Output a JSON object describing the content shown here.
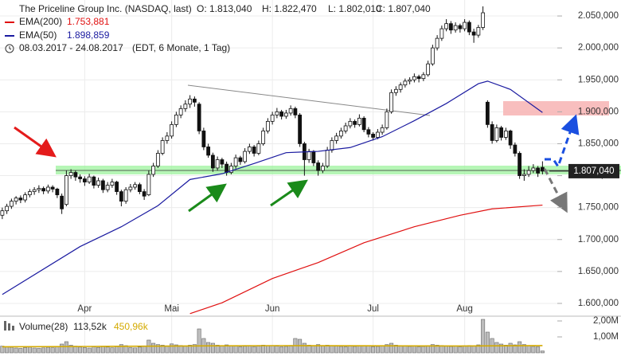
{
  "chart_data": {
    "type": "candlestick",
    "title": "The Priceline Group Inc. (NASDAQ, last)",
    "ohlc_labels": [
      "O: 1.813,040",
      "H: 1.822,470",
      "L: 1.802,010",
      "C: 1.807,040"
    ],
    "date_range": "08.03.2017 - 24.08.2017",
    "period_note": "(EDT, 6 Monate, 1 Tag)",
    "last_price_label": "1.807,040",
    "xlim": [
      -0.5,
      119.5
    ],
    "xticks": [
      {
        "value": 18,
        "label": "Apr"
      },
      {
        "value": 37,
        "label": "Mai"
      },
      {
        "value": 59,
        "label": "Jun"
      },
      {
        "value": 81,
        "label": "Jul"
      },
      {
        "value": 101,
        "label": "Aug"
      }
    ],
    "ylim": [
      1582.5,
      2075
    ],
    "yticks": [
      {
        "value": 1600,
        "label": "1.600,000"
      },
      {
        "value": 1650,
        "label": "1.650,000"
      },
      {
        "value": 1700,
        "label": "1.700,000"
      },
      {
        "value": 1750,
        "label": "1.750,000"
      },
      {
        "value": 1800,
        "label": "1.800,000"
      },
      {
        "value": 1850,
        "label": "1.850,000"
      },
      {
        "value": 1900,
        "label": "1.900,000"
      },
      {
        "value": 1950,
        "label": "1.950,000"
      },
      {
        "value": 2000,
        "label": "2.000,000"
      },
      {
        "value": 2050,
        "label": "2.050,000"
      }
    ],
    "grid": true,
    "candles": [
      [
        1738,
        1750,
        1732,
        1745
      ],
      [
        1745,
        1756,
        1740,
        1752
      ],
      [
        1752,
        1764,
        1748,
        1760
      ],
      [
        1760,
        1768,
        1755,
        1765
      ],
      [
        1765,
        1769,
        1757,
        1762
      ],
      [
        1762,
        1774,
        1758,
        1770
      ],
      [
        1770,
        1779,
        1766,
        1775
      ],
      [
        1775,
        1782,
        1770,
        1778
      ],
      [
        1778,
        1785,
        1773,
        1780
      ],
      [
        1780,
        1783,
        1771,
        1776
      ],
      [
        1776,
        1786,
        1772,
        1782
      ],
      [
        1782,
        1785,
        1774,
        1779
      ],
      [
        1779,
        1781,
        1765,
        1770
      ],
      [
        1768,
        1772,
        1740,
        1748
      ],
      [
        1755,
        1808,
        1752,
        1800
      ],
      [
        1800,
        1810,
        1795,
        1805
      ],
      [
        1805,
        1808,
        1792,
        1798
      ],
      [
        1798,
        1802,
        1789,
        1795
      ],
      [
        1795,
        1799,
        1784,
        1790
      ],
      [
        1790,
        1803,
        1787,
        1798
      ],
      [
        1798,
        1800,
        1780,
        1785
      ],
      [
        1785,
        1797,
        1781,
        1792
      ],
      [
        1792,
        1795,
        1773,
        1778
      ],
      [
        1778,
        1790,
        1774,
        1785
      ],
      [
        1785,
        1795,
        1781,
        1790
      ],
      [
        1790,
        1792,
        1770,
        1775
      ],
      [
        1775,
        1778,
        1752,
        1760
      ],
      [
        1760,
        1782,
        1756,
        1778
      ],
      [
        1778,
        1787,
        1774,
        1782
      ],
      [
        1782,
        1790,
        1778,
        1786
      ],
      [
        1786,
        1789,
        1771,
        1775
      ],
      [
        1775,
        1779,
        1762,
        1768
      ],
      [
        1770,
        1808,
        1768,
        1802
      ],
      [
        1802,
        1820,
        1798,
        1815
      ],
      [
        1815,
        1840,
        1812,
        1835
      ],
      [
        1835,
        1860,
        1832,
        1855
      ],
      [
        1855,
        1868,
        1850,
        1862
      ],
      [
        1862,
        1885,
        1858,
        1880
      ],
      [
        1880,
        1900,
        1876,
        1895
      ],
      [
        1895,
        1910,
        1890,
        1905
      ],
      [
        1905,
        1918,
        1900,
        1912
      ],
      [
        1912,
        1926,
        1906,
        1920
      ],
      [
        1920,
        1924,
        1908,
        1915
      ],
      [
        1912,
        1915,
        1865,
        1870
      ],
      [
        1870,
        1875,
        1840,
        1845
      ],
      [
        1845,
        1850,
        1828,
        1832
      ],
      [
        1832,
        1836,
        1806,
        1812
      ],
      [
        1812,
        1830,
        1808,
        1825
      ],
      [
        1825,
        1828,
        1812,
        1818
      ],
      [
        1818,
        1822,
        1800,
        1805
      ],
      [
        1805,
        1820,
        1802,
        1815
      ],
      [
        1815,
        1833,
        1811,
        1828
      ],
      [
        1828,
        1831,
        1817,
        1822
      ],
      [
        1822,
        1843,
        1819,
        1838
      ],
      [
        1838,
        1850,
        1834,
        1845
      ],
      [
        1845,
        1848,
        1830,
        1835
      ],
      [
        1835,
        1855,
        1832,
        1850
      ],
      [
        1850,
        1875,
        1847,
        1870
      ],
      [
        1870,
        1890,
        1866,
        1885
      ],
      [
        1885,
        1900,
        1880,
        1895
      ],
      [
        1895,
        1906,
        1890,
        1900
      ],
      [
        1900,
        1903,
        1888,
        1893
      ],
      [
        1893,
        1903,
        1889,
        1898
      ],
      [
        1898,
        1910,
        1894,
        1905
      ],
      [
        1905,
        1908,
        1890,
        1895
      ],
      [
        1895,
        1898,
        1845,
        1850
      ],
      [
        1850,
        1853,
        1800,
        1825
      ],
      [
        1825,
        1842,
        1820,
        1838
      ],
      [
        1838,
        1840,
        1815,
        1820
      ],
      [
        1820,
        1824,
        1800,
        1808
      ],
      [
        1808,
        1820,
        1804,
        1815
      ],
      [
        1815,
        1845,
        1812,
        1840
      ],
      [
        1840,
        1860,
        1836,
        1855
      ],
      [
        1855,
        1867,
        1850,
        1862
      ],
      [
        1862,
        1875,
        1858,
        1870
      ],
      [
        1870,
        1883,
        1866,
        1878
      ],
      [
        1878,
        1890,
        1874,
        1885
      ],
      [
        1885,
        1888,
        1875,
        1880
      ],
      [
        1880,
        1896,
        1877,
        1890
      ],
      [
        1890,
        1893,
        1868,
        1872
      ],
      [
        1872,
        1876,
        1860,
        1865
      ],
      [
        1865,
        1868,
        1855,
        1860
      ],
      [
        1860,
        1873,
        1857,
        1868
      ],
      [
        1868,
        1880,
        1864,
        1875
      ],
      [
        1875,
        1905,
        1872,
        1900
      ],
      [
        1900,
        1935,
        1897,
        1930
      ],
      [
        1930,
        1940,
        1925,
        1935
      ],
      [
        1935,
        1946,
        1930,
        1942
      ],
      [
        1942,
        1952,
        1938,
        1948
      ],
      [
        1948,
        1954,
        1943,
        1950
      ],
      [
        1950,
        1960,
        1946,
        1955
      ],
      [
        1955,
        1958,
        1946,
        1952
      ],
      [
        1952,
        1962,
        1948,
        1958
      ],
      [
        1958,
        1980,
        1955,
        1975
      ],
      [
        1975,
        2005,
        1972,
        2000
      ],
      [
        2000,
        2020,
        1996,
        2015
      ],
      [
        2015,
        2035,
        2011,
        2030
      ],
      [
        2030,
        2045,
        2026,
        2038
      ],
      [
        2038,
        2042,
        2022,
        2028
      ],
      [
        2028,
        2040,
        2024,
        2035
      ],
      [
        2035,
        2038,
        2024,
        2030
      ],
      [
        2030,
        2045,
        2026,
        2040
      ],
      [
        2040,
        2043,
        2020,
        2025
      ],
      [
        2025,
        2030,
        2008,
        2020
      ],
      [
        2020,
        2036,
        2016,
        2032
      ],
      [
        2032,
        2065,
        2028,
        2055
      ],
      [
        1915,
        1918,
        1875,
        1880
      ],
      [
        1880,
        1885,
        1850,
        1855
      ],
      [
        1855,
        1880,
        1852,
        1875
      ],
      [
        1875,
        1878,
        1855,
        1860
      ],
      [
        1860,
        1875,
        1856,
        1870
      ],
      [
        1870,
        1872,
        1842,
        1848
      ],
      [
        1848,
        1852,
        1830,
        1835
      ],
      [
        1835,
        1838,
        1795,
        1800
      ],
      [
        1800,
        1810,
        1792,
        1802
      ],
      [
        1802,
        1815,
        1798,
        1808
      ],
      [
        1808,
        1818,
        1804,
        1812
      ],
      [
        1812,
        1815,
        1798,
        1804
      ],
      [
        1813.04,
        1822.47,
        1802.01,
        1807.04
      ]
    ],
    "series": [
      {
        "name": "EMA(200)",
        "color": "#e01010",
        "value_label": "1.753,881",
        "x": [
          41,
          48,
          59,
          69,
          79,
          90,
          100,
          107,
          118
        ],
        "values": [
          1584,
          1601,
          1639,
          1664,
          1695,
          1720,
          1738,
          1748,
          1753.88
        ]
      },
      {
        "name": "EMA(50)",
        "color": "#1a1aa0",
        "value_label": "1.898,859",
        "x": [
          0,
          17,
          26,
          34,
          41,
          48,
          55,
          62,
          69,
          76,
          83,
          90,
          97,
          104,
          106,
          111,
          118
        ],
        "values": [
          1614,
          1689,
          1720,
          1753,
          1794,
          1803,
          1819,
          1836,
          1838,
          1844,
          1861,
          1886,
          1913,
          1944,
          1948,
          1935,
          1898.86
        ]
      }
    ],
    "volume": {
      "name": "Volume(28)",
      "last_label": "113,52k",
      "avg_label": "450,96k",
      "avg_color": "#d4aa00",
      "ylim": [
        0,
        2200000
      ],
      "yticks": [
        {
          "value": 1000000,
          "label": "1,00M"
        },
        {
          "value": 2000000,
          "label": "2,00M"
        }
      ],
      "values": [
        420000,
        380000,
        350000,
        300000,
        280000,
        330000,
        360000,
        300000,
        290000,
        310000,
        350000,
        320000,
        400000,
        550000,
        700000,
        480000,
        420000,
        360000,
        330000,
        300000,
        380000,
        340000,
        400000,
        360000,
        320000,
        390000,
        520000,
        450000,
        330000,
        310000,
        360000,
        420000,
        800000,
        600000,
        520000,
        480000,
        420000,
        560000,
        500000,
        460000,
        430000,
        480000,
        520000,
        1500000,
        900000,
        650000,
        600000,
        480000,
        420000,
        500000,
        440000,
        420000,
        380000,
        410000,
        430000,
        390000,
        420000,
        480000,
        460000,
        440000,
        420000,
        380000,
        400000,
        430000,
        900000,
        850000,
        600000,
        480000,
        450000,
        520000,
        430000,
        480000,
        440000,
        420000,
        400000,
        380000,
        420000,
        400000,
        430000,
        460000,
        420000,
        380000,
        400000,
        420000,
        520000,
        600000,
        480000,
        440000,
        420000,
        400000,
        430000,
        380000,
        400000,
        450000,
        520000,
        480000,
        460000,
        430000,
        400000,
        420000,
        380000,
        440000,
        460000,
        420000,
        500000,
        2100000,
        1300000,
        900000,
        650000,
        550000,
        480000,
        600000,
        500000,
        700000,
        520000,
        450000,
        400000,
        380000,
        113520
      ],
      "avg_x": [
        0,
        20,
        40,
        60,
        80,
        100,
        118
      ],
      "avg_values": [
        380000,
        400000,
        430000,
        450000,
        440000,
        430000,
        450960
      ]
    }
  }
}
